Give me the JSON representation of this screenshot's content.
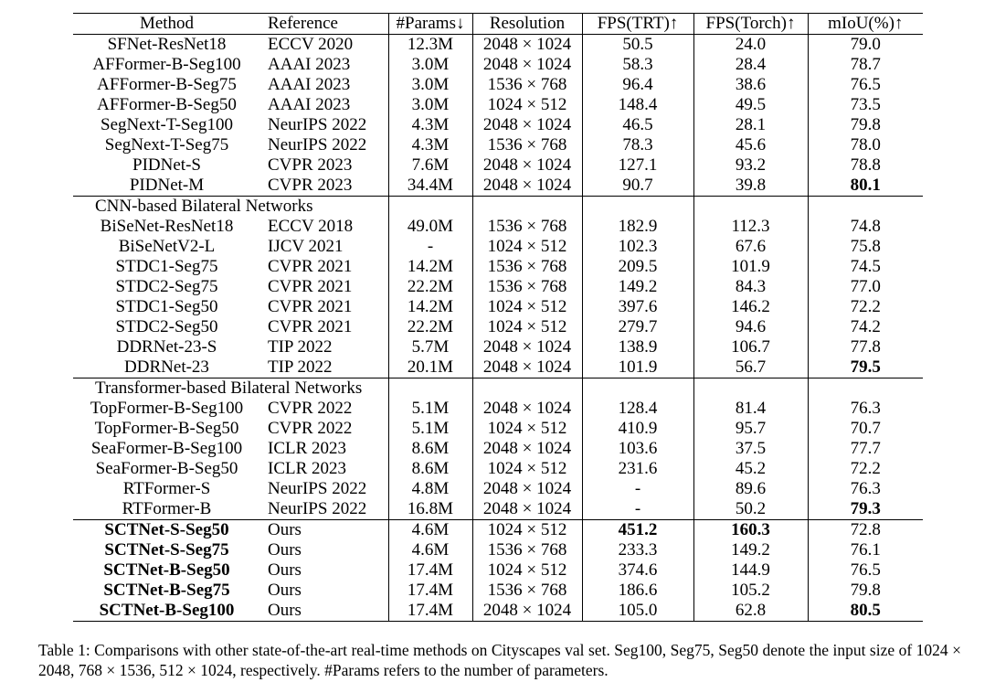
{
  "table": {
    "headers": {
      "method": "Method",
      "reference": "Reference",
      "params": "#Params↓",
      "resolution": "Resolution",
      "fps_trt": "FPS(TRT)↑",
      "fps_torch": "FPS(Torch)↑",
      "miou": "mIoU(%)↑"
    },
    "group_general": [
      {
        "method": "SFNet-ResNet18",
        "ref": "ECCV 2020",
        "params": "12.3M",
        "res": "2048 × 1024",
        "trt": "50.5",
        "torch": "24.0",
        "miou": "79.0"
      },
      {
        "method": "AFFormer-B-Seg100",
        "ref": "AAAI 2023",
        "params": "3.0M",
        "res": "2048 × 1024",
        "trt": "58.3",
        "torch": "28.4",
        "miou": "78.7"
      },
      {
        "method": "AFFormer-B-Seg75",
        "ref": "AAAI 2023",
        "params": "3.0M",
        "res": "1536 × 768",
        "trt": "96.4",
        "torch": "38.6",
        "miou": "76.5"
      },
      {
        "method": "AFFormer-B-Seg50",
        "ref": "AAAI 2023",
        "params": "3.0M",
        "res": "1024 × 512",
        "trt": "148.4",
        "torch": "49.5",
        "miou": "73.5"
      },
      {
        "method": "SegNext-T-Seg100",
        "ref": "NeurIPS 2022",
        "params": "4.3M",
        "res": "2048 × 1024",
        "trt": "46.5",
        "torch": "28.1",
        "miou": "79.8"
      },
      {
        "method": "SegNext-T-Seg75",
        "ref": "NeurIPS 2022",
        "params": "4.3M",
        "res": "1536 × 768",
        "trt": "78.3",
        "torch": "45.6",
        "miou": "78.0"
      },
      {
        "method": "PIDNet-S",
        "ref": "CVPR 2023",
        "params": "7.6M",
        "res": "2048 × 1024",
        "trt": "127.1",
        "torch": "93.2",
        "miou": "78.8"
      },
      {
        "method": "PIDNet-M",
        "ref": "CVPR 2023",
        "params": "34.4M",
        "res": "2048 × 1024",
        "trt": "90.7",
        "torch": "39.8",
        "miou": "80.1"
      }
    ],
    "group_cnn_label": "CNN-based Bilateral Networks",
    "group_cnn": [
      {
        "method": "BiSeNet-ResNet18",
        "ref": "ECCV 2018",
        "params": "49.0M",
        "res": "1536 × 768",
        "trt": "182.9",
        "torch": "112.3",
        "miou": "74.8"
      },
      {
        "method": "BiSeNetV2-L",
        "ref": "IJCV 2021",
        "params": "-",
        "res": "1024 × 512",
        "trt": "102.3",
        "torch": "67.6",
        "miou": "75.8"
      },
      {
        "method": "STDC1-Seg75",
        "ref": "CVPR 2021",
        "params": "14.2M",
        "res": "1536 × 768",
        "trt": "209.5",
        "torch": "101.9",
        "miou": "74.5"
      },
      {
        "method": "STDC2-Seg75",
        "ref": "CVPR 2021",
        "params": "22.2M",
        "res": "1536 × 768",
        "trt": "149.2",
        "torch": "84.3",
        "miou": "77.0"
      },
      {
        "method": "STDC1-Seg50",
        "ref": "CVPR 2021",
        "params": "14.2M",
        "res": "1024 × 512",
        "trt": "397.6",
        "torch": "146.2",
        "miou": "72.2"
      },
      {
        "method": "STDC2-Seg50",
        "ref": "CVPR 2021",
        "params": "22.2M",
        "res": "1024 × 512",
        "trt": "279.7",
        "torch": "94.6",
        "miou": "74.2"
      },
      {
        "method": "DDRNet-23-S",
        "ref": "TIP 2022",
        "params": "5.7M",
        "res": "2048 × 1024",
        "trt": "138.9",
        "torch": "106.7",
        "miou": "77.8"
      },
      {
        "method": "DDRNet-23",
        "ref": "TIP 2022",
        "params": "20.1M",
        "res": "2048 × 1024",
        "trt": "101.9",
        "torch": "56.7",
        "miou": "79.5"
      }
    ],
    "group_transformer_label": "Transformer-based Bilateral Networks",
    "group_transformer": [
      {
        "method": "TopFormer-B-Seg100",
        "ref": "CVPR 2022",
        "params": "5.1M",
        "res": "2048 × 1024",
        "trt": "128.4",
        "torch": "81.4",
        "miou": "76.3"
      },
      {
        "method": "TopFormer-B-Seg50",
        "ref": "CVPR 2022",
        "params": "5.1M",
        "res": "1024 × 512",
        "trt": "410.9",
        "torch": "95.7",
        "miou": "70.7"
      },
      {
        "method": "SeaFormer-B-Seg100",
        "ref": "ICLR 2023",
        "params": "8.6M",
        "res": "2048 × 1024",
        "trt": "103.6",
        "torch": "37.5",
        "miou": "77.7"
      },
      {
        "method": "SeaFormer-B-Seg50",
        "ref": "ICLR 2023",
        "params": "8.6M",
        "res": "1024 × 512",
        "trt": "231.6",
        "torch": "45.2",
        "miou": "72.2"
      },
      {
        "method": "RTFormer-S",
        "ref": "NeurIPS 2022",
        "params": "4.8M",
        "res": "2048 × 1024",
        "trt": "-",
        "torch": "89.6",
        "miou": "76.3"
      },
      {
        "method": "RTFormer-B",
        "ref": "NeurIPS 2022",
        "params": "16.8M",
        "res": "2048 × 1024",
        "trt": "-",
        "torch": "50.2",
        "miou": "79.3"
      }
    ],
    "group_ours": [
      {
        "method": "SCTNet-S-Seg50",
        "ref": "Ours",
        "params": "4.6M",
        "res": "1024 × 512",
        "trt": "451.2",
        "torch": "160.3",
        "miou": "72.8"
      },
      {
        "method": "SCTNet-S-Seg75",
        "ref": "Ours",
        "params": "4.6M",
        "res": "1536 × 768",
        "trt": "233.3",
        "torch": "149.2",
        "miou": "76.1"
      },
      {
        "method": "SCTNet-B-Seg50",
        "ref": "Ours",
        "params": "17.4M",
        "res": "1024 × 512",
        "trt": "374.6",
        "torch": "144.9",
        "miou": "76.5"
      },
      {
        "method": "SCTNet-B-Seg75",
        "ref": "Ours",
        "params": "17.4M",
        "res": "1536 × 768",
        "trt": "186.6",
        "torch": "105.2",
        "miou": "79.8"
      },
      {
        "method": "SCTNet-B-Seg100",
        "ref": "Ours",
        "params": "17.4M",
        "res": "2048 × 1024",
        "trt": "105.0",
        "torch": "62.8",
        "miou": "80.5"
      }
    ]
  },
  "caption": "Table 1: Comparisons with other state-of-the-art real-time methods on Cityscapes val set. Seg100, Seg75, Seg50 denote the input size of 1024 × 2048, 768 × 1536, 512 × 1024, respectively. #Params refers to the number of parameters."
}
